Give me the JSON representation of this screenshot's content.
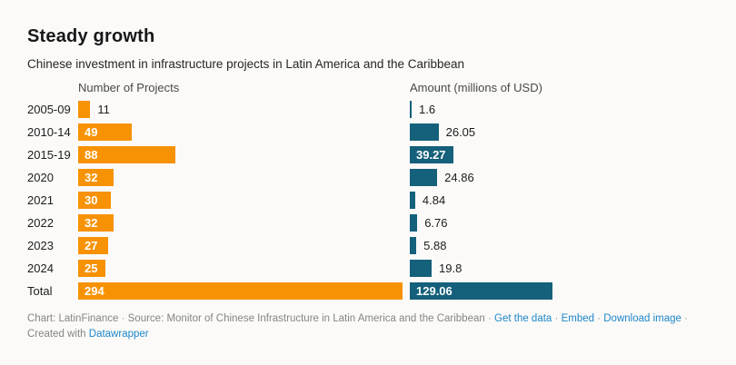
{
  "chart_data": {
    "type": "bar",
    "orientation": "horizontal",
    "layout": "split-columns",
    "title": "Steady growth",
    "subtitle": "Chinese investment in infrastructure projects in Latin America and the Caribbean",
    "categories": [
      "2005-09",
      "2010-14",
      "2015-19",
      "2020",
      "2021",
      "2022",
      "2023",
      "2024",
      "Total"
    ],
    "series": [
      {
        "name": "Number of Projects",
        "color": "#f79205",
        "values": [
          11,
          49,
          88,
          32,
          30,
          32,
          27,
          25,
          294
        ]
      },
      {
        "name": "Amount (millions of USD)",
        "color": "#15607a",
        "values": [
          1.6,
          26.05,
          39.27,
          24.86,
          4.84,
          6.76,
          5.88,
          19.8,
          129.06
        ]
      }
    ],
    "value_axis": {
      "min": 0,
      "max": 294,
      "shared_scale": true,
      "gridlines": false
    },
    "value_labels_shown": true,
    "legend": "none"
  },
  "colors": {
    "background": "#fbfaf8",
    "projects_bar": "#f79205",
    "amount_bar": "#15607a",
    "link": "#1e87c9",
    "footer_text": "#858585",
    "inside_label": "#ffffff"
  },
  "footer": {
    "credit": "Chart: LatinFinance",
    "source": "Source: Monitor of Chinese Infrastructure in Latin America and the Caribbean",
    "separator": "·",
    "links": [
      "Get the data",
      "Embed",
      "Download image"
    ],
    "created_with": "Created with",
    "brand": "Datawrapper"
  }
}
